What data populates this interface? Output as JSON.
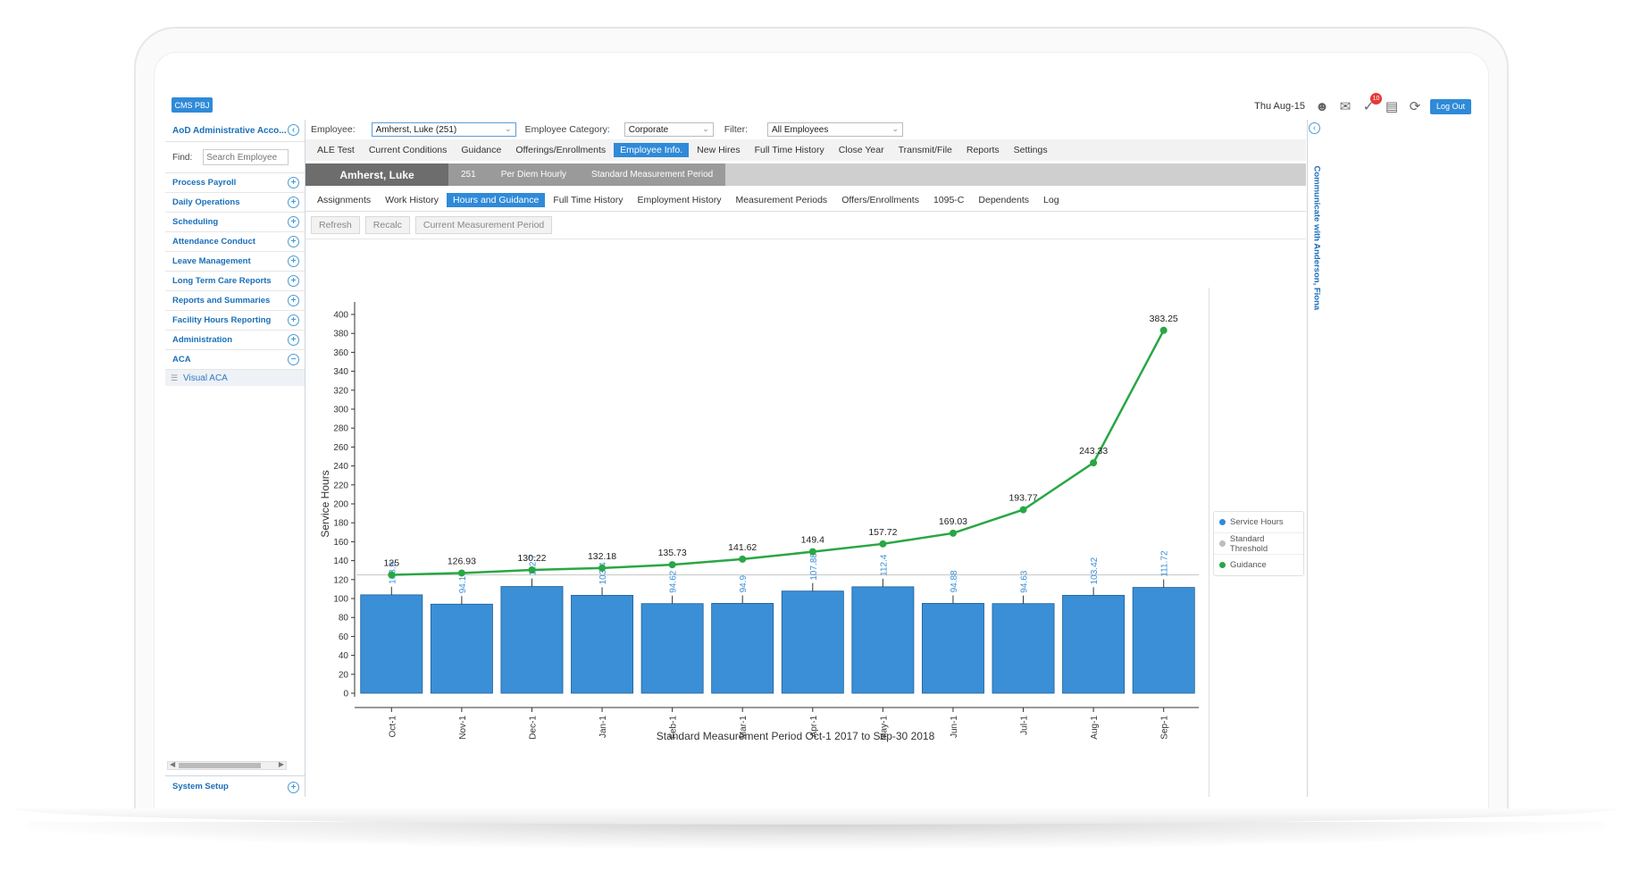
{
  "header": {
    "brand": "CMS PBJ",
    "date": "Thu Aug-15",
    "badge_count": "10",
    "logout": "Log Out"
  },
  "sidebar": {
    "account": "AoD Administrative Acco...",
    "find_label": "Find:",
    "search_placeholder": "Search Employee",
    "items": [
      {
        "label": "Process Payroll"
      },
      {
        "label": "Daily Operations"
      },
      {
        "label": "Scheduling"
      },
      {
        "label": "Attendance Conduct"
      },
      {
        "label": "Leave Management"
      },
      {
        "label": "Long Term Care Reports"
      },
      {
        "label": "Reports and Summaries"
      },
      {
        "label": "Facility Hours Reporting"
      },
      {
        "label": "Administration"
      },
      {
        "label": "ACA"
      }
    ],
    "sub_item": "Visual ACA",
    "footer": "System Setup"
  },
  "filters": {
    "employee_label": "Employee:",
    "employee_value": "Amherst, Luke  (251)",
    "category_label": "Employee Category:",
    "category_value": "Corporate",
    "filter_label": "Filter:",
    "filter_value": "All Employees"
  },
  "nav_tabs": [
    "ALE Test",
    "Current Conditions",
    "Guidance",
    "Offerings/Enrollments",
    "Employee Info.",
    "New Hires",
    "Full Time History",
    "Close Year",
    "Transmit/File",
    "Reports",
    "Settings"
  ],
  "employee_bar": {
    "name": "Amherst, Luke",
    "id": "251",
    "type": "Per Diem Hourly",
    "period": "Standard Measurement Period"
  },
  "sub_tabs": [
    "Assignments",
    "Work History",
    "Hours and Guidance",
    "Full Time History",
    "Employment History",
    "Measurement Periods",
    "Offers/Enrollments",
    "1095-C",
    "Dependents",
    "Log"
  ],
  "actions": {
    "refresh": "Refresh",
    "recalc": "Recalc",
    "current": "Current Measurement Period"
  },
  "right_strip": "Communicate with Anderson, Fiona",
  "legend": [
    {
      "label": "Service Hours",
      "color": "#2f8ad8"
    },
    {
      "label": "Standard Threshold",
      "color": "#bdbdbd"
    },
    {
      "label": "Guidance",
      "color": "#28a745"
    }
  ],
  "chart_data": {
    "type": "bar",
    "ylabel": "Service Hours",
    "xlabel": "Standard Measurement Period Oct-1 2017 to Sep-30 2018",
    "categories": [
      "Oct-1",
      "Nov-1",
      "Dec-1",
      "Jan-1",
      "Feb-1",
      "Mar-1",
      "Apr-1",
      "May-1",
      "Jun-1",
      "Jul-1",
      "Aug-1",
      "Sep-1"
    ],
    "ylim": [
      0,
      400
    ],
    "yticks": [
      0,
      20,
      40,
      60,
      80,
      100,
      120,
      140,
      160,
      180,
      200,
      220,
      240,
      260,
      280,
      300,
      320,
      340,
      360,
      380,
      400
    ],
    "threshold": 125,
    "series": [
      {
        "name": "Service Hours",
        "type": "bar",
        "values": [
          103.9,
          94.1,
          112.7,
          103.4,
          94.62,
          94.9,
          107.88,
          112.4,
          94.88,
          94.63,
          103.42,
          111.72
        ],
        "labels": [
          "103.9",
          "94.1",
          "112.7",
          "103.4",
          "94.62",
          "94.9",
          "107.88",
          "112.4",
          "94.88",
          "94.63",
          "103.42",
          "111.72"
        ]
      },
      {
        "name": "Guidance",
        "type": "line",
        "values": [
          125,
          126.93,
          130.22,
          132.18,
          135.73,
          141.62,
          149.4,
          157.72,
          169.03,
          193.77,
          243.33,
          383.25
        ],
        "labels": [
          "125",
          "126.93",
          "130.22",
          "132.18",
          "135.73",
          "141.62",
          "149.4",
          "157.72",
          "169.03",
          "193.77",
          "243.33",
          "383.25"
        ]
      }
    ]
  }
}
